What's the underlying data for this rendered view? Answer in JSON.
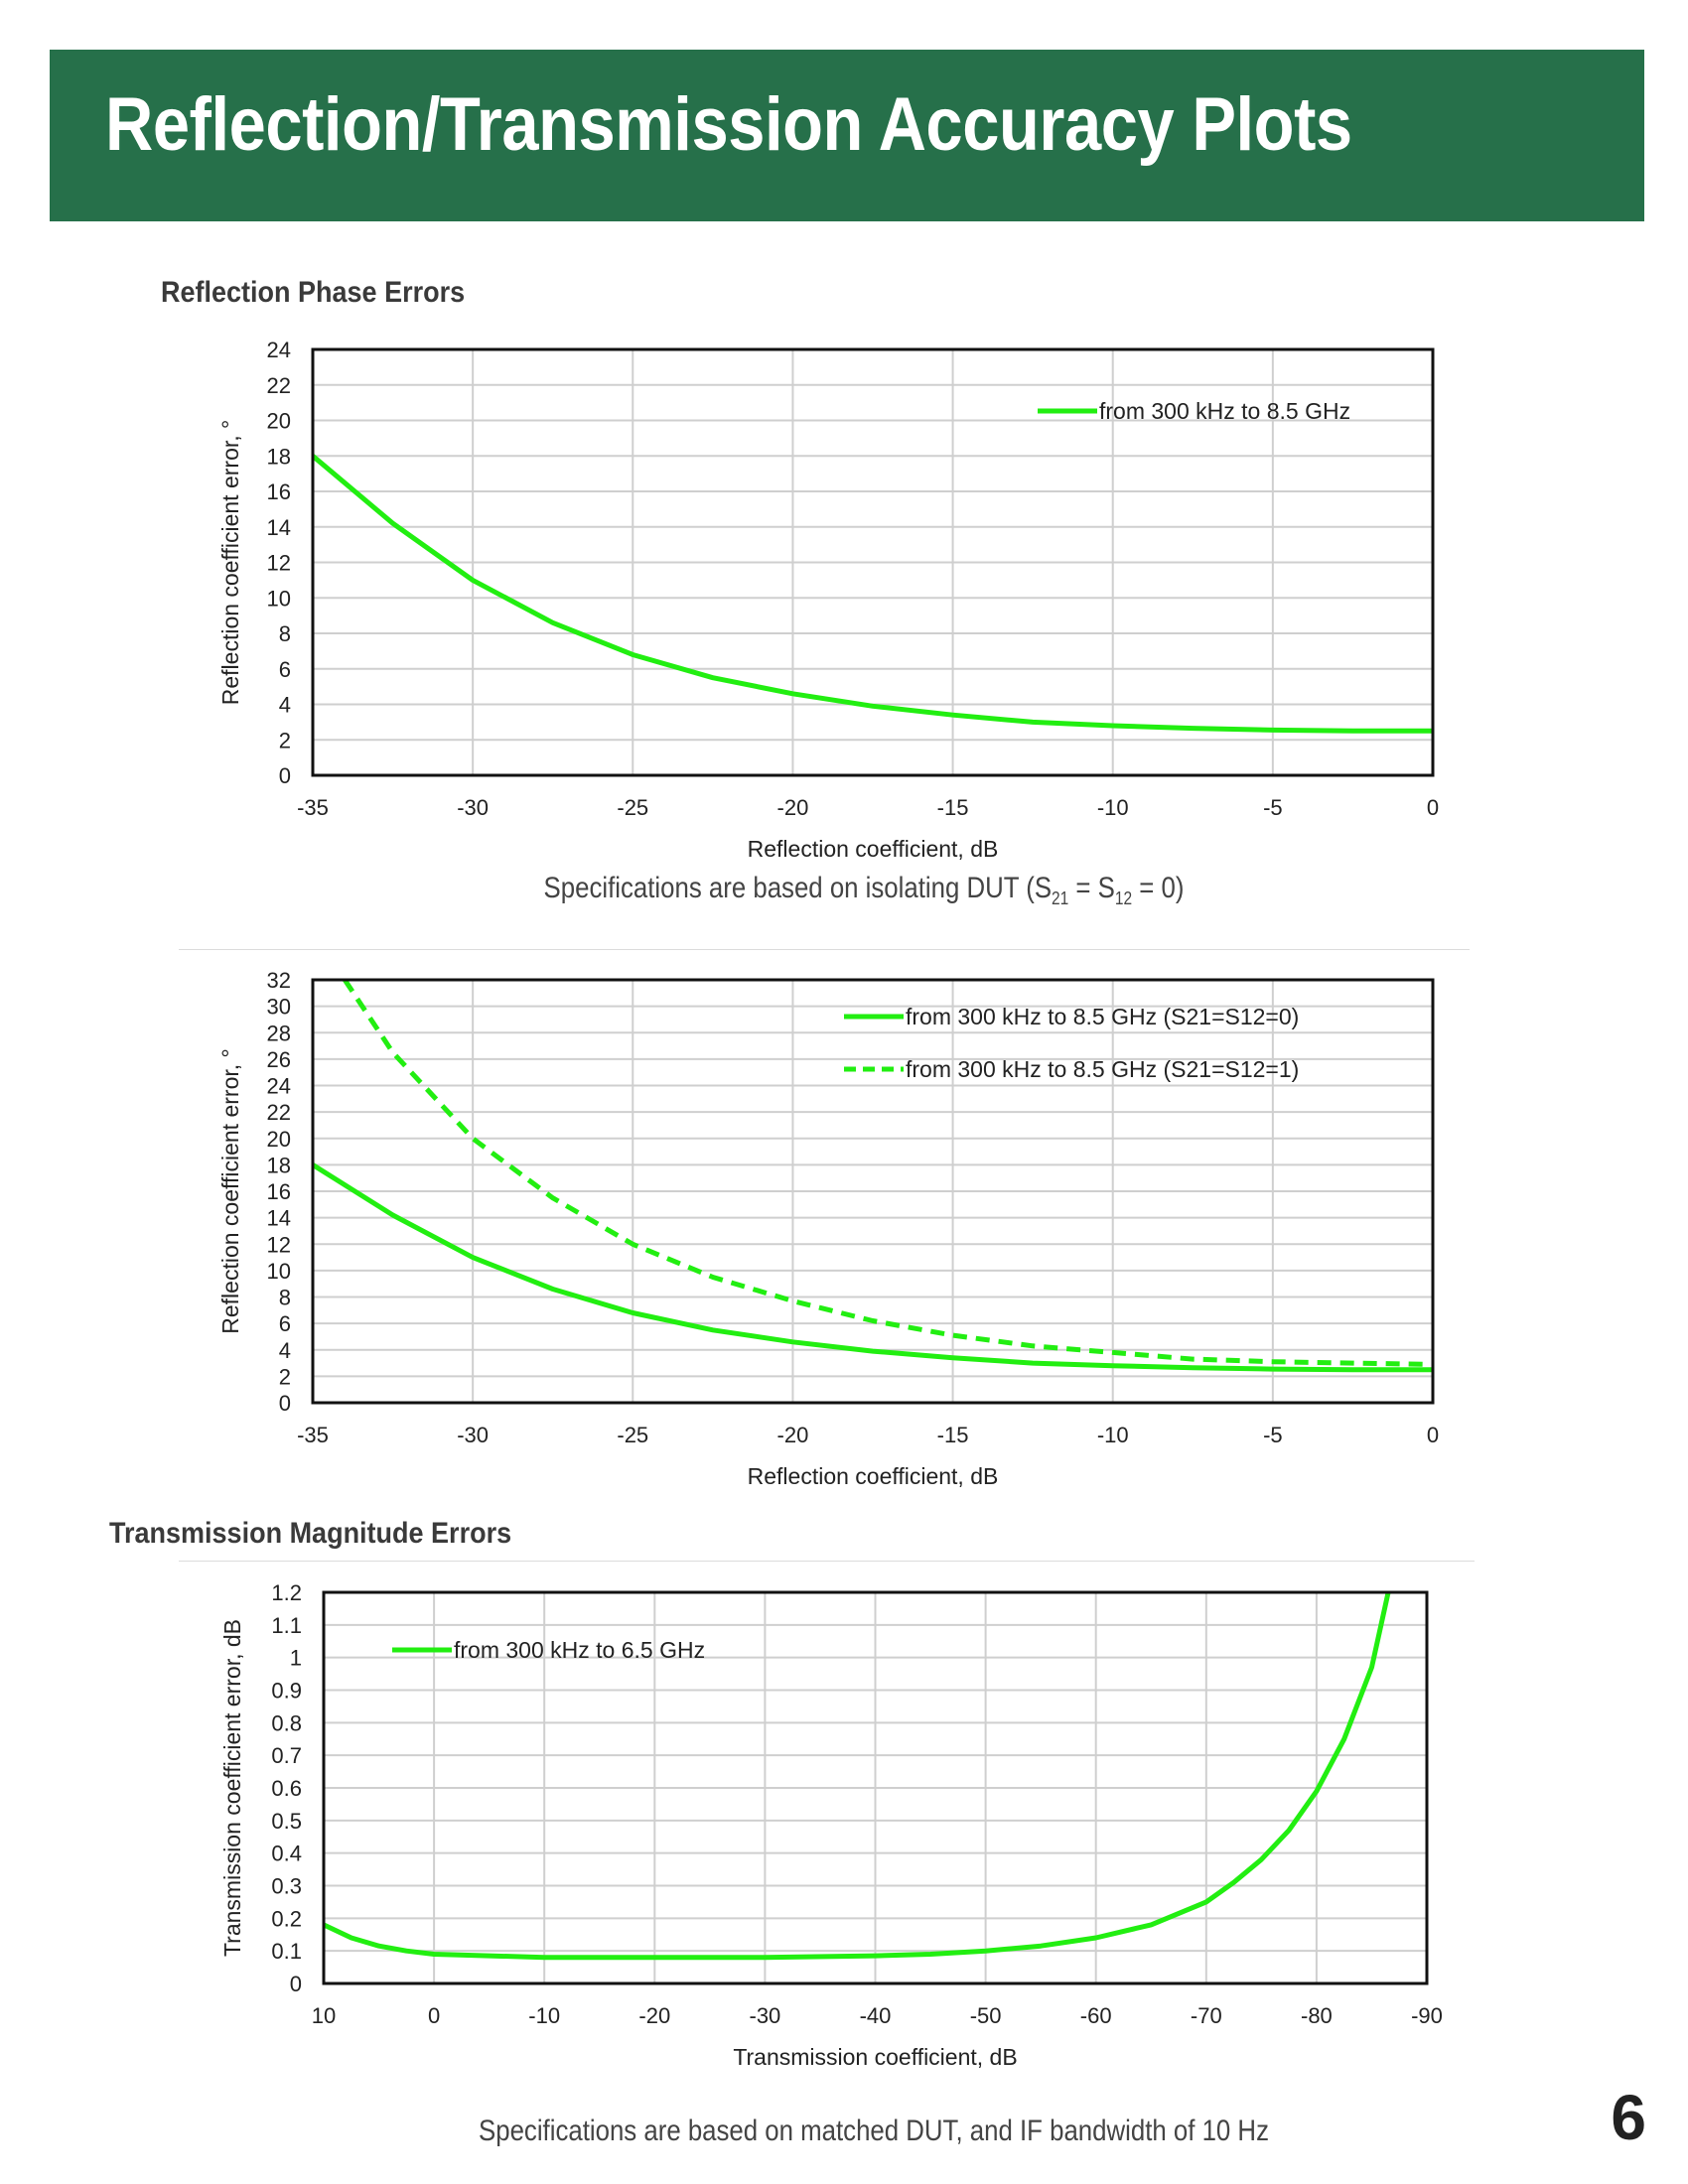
{
  "header": {
    "title": "Reflection/Transmission Accuracy Plots"
  },
  "sections": {
    "phase_heading": "Reflection Phase Errors",
    "transmission_heading": "Transmission Magnitude Errors"
  },
  "notes": {
    "note1_prefix": "Specifications are based on isolating DUT (S",
    "note1_sub1": "21",
    "note1_mid": " = S",
    "note1_sub2": "12",
    "note1_suffix": " = 0)",
    "note2": "Specifications are based on matched DUT, and IF bandwidth of 10 Hz"
  },
  "page_number": "6",
  "colors": {
    "banner": "#26704a",
    "series": "#22ee11"
  },
  "chart_data": [
    {
      "type": "line",
      "xlabel": "Reflection coefficient, dB",
      "ylabel": "Reflection coefficient error, °",
      "xlim": [
        -35,
        0
      ],
      "ylim": [
        0,
        24
      ],
      "x_ticks": [
        -35,
        -30,
        -25,
        -20,
        -15,
        -10,
        -5,
        0
      ],
      "y_ticks": [
        0,
        2,
        4,
        6,
        8,
        10,
        12,
        14,
        16,
        18,
        20,
        22,
        24
      ],
      "grid": true,
      "legend": "top-right",
      "series": [
        {
          "name": "from 300 kHz to 8.5 GHz",
          "style": "solid",
          "x": [
            -35,
            -32.5,
            -30,
            -27.5,
            -25,
            -22.5,
            -20,
            -17.5,
            -15,
            -12.5,
            -10,
            -7.5,
            -5,
            -2.5,
            0
          ],
          "y": [
            18,
            14.2,
            11,
            8.6,
            6.8,
            5.5,
            4.6,
            3.9,
            3.4,
            3.0,
            2.8,
            2.65,
            2.55,
            2.5,
            2.5
          ]
        }
      ]
    },
    {
      "type": "line",
      "xlabel": "Reflection coefficient, dB",
      "ylabel": "Reflection coefficient error, °",
      "xlim": [
        -35,
        0
      ],
      "ylim": [
        0,
        32
      ],
      "x_ticks": [
        -35,
        -30,
        -25,
        -20,
        -15,
        -10,
        -5,
        0
      ],
      "y_ticks": [
        0,
        2,
        4,
        6,
        8,
        10,
        12,
        14,
        16,
        18,
        20,
        22,
        24,
        26,
        28,
        30,
        32
      ],
      "grid": true,
      "legend": "top-right",
      "series": [
        {
          "name": "from 300 kHz to 8.5 GHz (S21=S12=0)",
          "style": "solid",
          "x": [
            -35,
            -32.5,
            -30,
            -27.5,
            -25,
            -22.5,
            -20,
            -17.5,
            -15,
            -12.5,
            -10,
            -7.5,
            -5,
            -2.5,
            0
          ],
          "y": [
            18,
            14.2,
            11,
            8.6,
            6.8,
            5.5,
            4.6,
            3.9,
            3.4,
            3.0,
            2.8,
            2.65,
            2.55,
            2.5,
            2.5
          ]
        },
        {
          "name": "from 300 kHz to 8.5 GHz (S21=S12=1)",
          "style": "dashed",
          "x": [
            -34,
            -32.5,
            -30,
            -27.5,
            -25,
            -22.5,
            -20,
            -17.5,
            -15,
            -12.5,
            -10,
            -7.5,
            -5,
            -2.5,
            0
          ],
          "y": [
            32,
            26.5,
            20,
            15.5,
            12,
            9.5,
            7.7,
            6.2,
            5.1,
            4.3,
            3.8,
            3.3,
            3.1,
            3.0,
            2.9
          ]
        }
      ]
    },
    {
      "type": "line",
      "xlabel": "Transmission coefficient, dB",
      "ylabel": "Transmission coefficient error, dB",
      "xlim": [
        10,
        -90
      ],
      "ylim": [
        0,
        1.2
      ],
      "x_ticks": [
        10,
        0,
        -10,
        -20,
        -30,
        -40,
        -50,
        -60,
        -70,
        -80,
        -90
      ],
      "y_ticks": [
        0,
        0.1,
        0.2,
        0.3,
        0.4,
        0.5,
        0.6,
        0.7,
        0.8,
        0.9,
        1,
        1.1,
        1.2
      ],
      "grid": true,
      "legend": "top-left",
      "series": [
        {
          "name": "from 300 kHz to 6.5 GHz",
          "style": "solid",
          "x": [
            10,
            7.5,
            5,
            2.5,
            0,
            -5,
            -10,
            -20,
            -30,
            -40,
            -45,
            -50,
            -55,
            -60,
            -65,
            -70,
            -72.5,
            -75,
            -77.5,
            -80,
            -82.5,
            -85,
            -86.5
          ],
          "y": [
            0.18,
            0.14,
            0.115,
            0.1,
            0.09,
            0.085,
            0.08,
            0.08,
            0.08,
            0.085,
            0.09,
            0.1,
            0.115,
            0.14,
            0.18,
            0.25,
            0.31,
            0.38,
            0.47,
            0.59,
            0.75,
            0.97,
            1.2
          ]
        }
      ]
    }
  ]
}
